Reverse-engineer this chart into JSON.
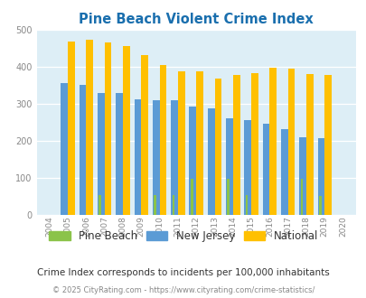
{
  "title": "Pine Beach Violent Crime Index",
  "years": [
    2004,
    2005,
    2006,
    2007,
    2008,
    2009,
    2010,
    2011,
    2012,
    2013,
    2014,
    2015,
    2016,
    2017,
    2018,
    2019,
    2020
  ],
  "pine_beach": [
    0,
    0,
    0,
    53,
    0,
    0,
    52,
    52,
    97,
    0,
    97,
    52,
    0,
    0,
    97,
    50,
    0
  ],
  "new_jersey": [
    0,
    355,
    350,
    329,
    329,
    311,
    309,
    309,
    292,
    287,
    261,
    256,
    247,
    230,
    210,
    207,
    0
  ],
  "national": [
    0,
    469,
    474,
    467,
    456,
    432,
    405,
    388,
    387,
    368,
    377,
    383,
    398,
    394,
    380,
    379,
    0
  ],
  "pine_beach_color": "#8bc34a",
  "new_jersey_color": "#5b9bd5",
  "national_color": "#ffc000",
  "plot_bg_color": "#ddeef6",
  "title_color": "#1a6fae",
  "legend_labels": [
    "Pine Beach",
    "New Jersey",
    "National"
  ],
  "subtitle": "Crime Index corresponds to incidents per 100,000 inhabitants",
  "footer": "© 2025 CityRating.com - https://www.cityrating.com/crime-statistics/",
  "ylim": [
    0,
    500
  ],
  "yticks": [
    0,
    100,
    200,
    300,
    400,
    500
  ],
  "bar_width": 0.38
}
